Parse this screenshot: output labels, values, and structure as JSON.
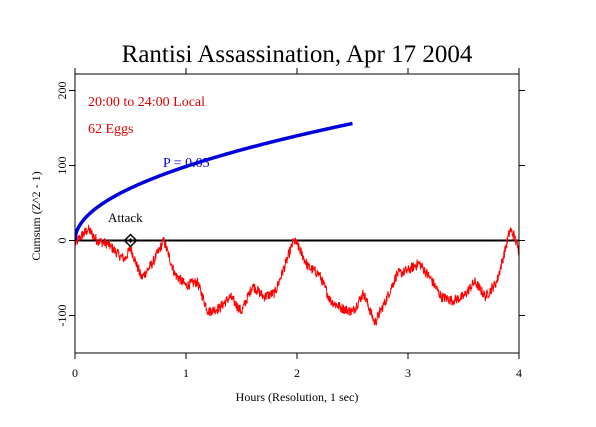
{
  "chart_data": {
    "type": "line",
    "title": "Rantisi Assassination, Apr 17 2004",
    "xlabel": "Hours (Resolution, 1 sec)",
    "ylabel": "Cumsum (Z^2 - 1)",
    "xlim": [
      0,
      4
    ],
    "ylim": [
      -150,
      222
    ],
    "xticks": [
      0,
      1,
      2,
      3,
      4
    ],
    "yticks": [
      -100,
      0,
      100,
      200
    ],
    "grid": false,
    "annotations": {
      "time_window": "20:00 to 24:00 Local",
      "eggs": "62 Eggs",
      "envelope_label": "P = 0.05",
      "event_label": "Attack"
    },
    "event": {
      "x": 0.5,
      "y": 0
    },
    "series": [
      {
        "kind": "cumsum",
        "color": "#ff0000",
        "x": [
          0,
          0.05,
          0.12,
          0.2,
          0.3,
          0.4,
          0.45,
          0.5,
          0.55,
          0.6,
          0.7,
          0.8,
          0.9,
          1.0,
          1.1,
          1.2,
          1.3,
          1.4,
          1.5,
          1.6,
          1.7,
          1.8,
          1.9,
          1.97,
          2.0,
          2.1,
          2.2,
          2.3,
          2.4,
          2.5,
          2.6,
          2.7,
          2.8,
          2.9,
          3.0,
          3.1,
          3.2,
          3.3,
          3.4,
          3.5,
          3.6,
          3.7,
          3.8,
          3.88,
          3.92,
          3.96,
          4.0
        ],
        "y": [
          -5,
          5,
          15,
          0,
          -5,
          -20,
          -25,
          -10,
          -30,
          -50,
          -30,
          0,
          -45,
          -60,
          -55,
          -95,
          -90,
          -75,
          -95,
          -60,
          -75,
          -70,
          -30,
          0,
          -5,
          -35,
          -45,
          -80,
          -90,
          -95,
          -70,
          -110,
          -80,
          -45,
          -40,
          -30,
          -50,
          -75,
          -80,
          -75,
          -55,
          -75,
          -55,
          -10,
          15,
          5,
          -15
        ]
      },
      {
        "kind": "envelope",
        "color": "#0000dd",
        "formula": "1.645*sqrt(t_sec)",
        "x_end": 2.5
      }
    ]
  }
}
